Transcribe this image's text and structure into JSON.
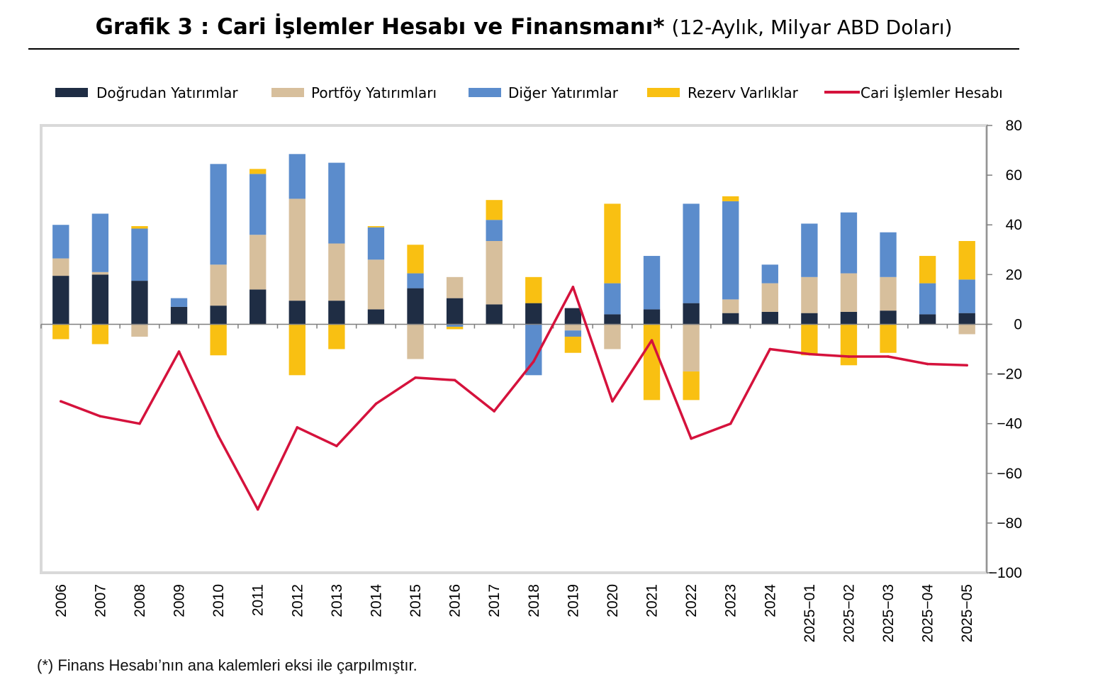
{
  "title": "Grafik 3 : Cari İşlemler Hesabı ve Finansmanı*",
  "subtitle": "(12-Aylık, Milyar ABD Doları)",
  "footnote": "(*) Finans Hesabı’nın ana kalemleri eksi ile çarpılmıştır.",
  "chart_data": {
    "type": "bar",
    "stacked": true,
    "categories": [
      "2006",
      "2007",
      "2008",
      "2009",
      "2010",
      "2011",
      "2012",
      "2013",
      "2014",
      "2015",
      "2016",
      "2017",
      "2018",
      "2019",
      "2020",
      "2021",
      "2022",
      "2023",
      "2024",
      "2025-01",
      "2025-02",
      "2025-03",
      "2025-04",
      "2025-05"
    ],
    "ylim": [
      -100,
      80
    ],
    "yticks": [
      80,
      60,
      40,
      20,
      0,
      -20,
      -40,
      -60,
      -80,
      -100
    ],
    "y_axis_side": "right",
    "grid": false,
    "legend_position": "top",
    "series": [
      {
        "name": "Doğrudan Yatırımlar",
        "kind": "bar",
        "color": "#1f2d44",
        "values": [
          19.5,
          20,
          17.5,
          7,
          7.5,
          14,
          9.5,
          9.5,
          6,
          14.5,
          10.5,
          8,
          8.5,
          6.5,
          4,
          6,
          8.5,
          4.5,
          5,
          4.5,
          5,
          5.5,
          4,
          4.5
        ]
      },
      {
        "name": "Portföy Yatırımları",
        "kind": "bar",
        "color": "#d7bf9c",
        "values": [
          7,
          1,
          -5,
          0,
          16.5,
          22,
          41,
          23,
          20,
          -14,
          8.5,
          25.5,
          0,
          -2.5,
          -10,
          0,
          -19,
          5.5,
          11.5,
          14.5,
          15.5,
          13.5,
          0,
          -4
        ]
      },
      {
        "name": "Diğer Yatırımlar",
        "kind": "bar",
        "color": "#5b8ccc",
        "values": [
          13.5,
          23.5,
          21,
          3.5,
          40.5,
          24.5,
          18,
          32.5,
          13,
          6,
          -1,
          8.5,
          -20.5,
          -2.5,
          12.5,
          21.5,
          40,
          39.5,
          7.5,
          21.5,
          24.5,
          18,
          12.5,
          13.5
        ]
      },
      {
        "name": "Rezerv Varlıklar",
        "kind": "bar",
        "color": "#f9c012",
        "values": [
          -6,
          -8,
          1,
          0,
          -12.5,
          2,
          -20.5,
          -10,
          0.5,
          11.5,
          -1,
          8,
          10.5,
          -6.5,
          32,
          -30.5,
          -11.5,
          2,
          0,
          -12.5,
          -16.5,
          -11.5,
          11,
          15.5
        ]
      },
      {
        "name": "Cari İşlemler Hesabı",
        "kind": "line",
        "color": "#d5123c",
        "values": [
          -31,
          -37,
          -40,
          -11,
          -45,
          -74.5,
          -41.5,
          -49,
          -32,
          -21.5,
          -22.5,
          -35,
          -15,
          15,
          -31,
          -6.5,
          -46,
          -40,
          -10,
          -12,
          -13,
          -13,
          -16,
          -16.5
        ]
      }
    ]
  }
}
